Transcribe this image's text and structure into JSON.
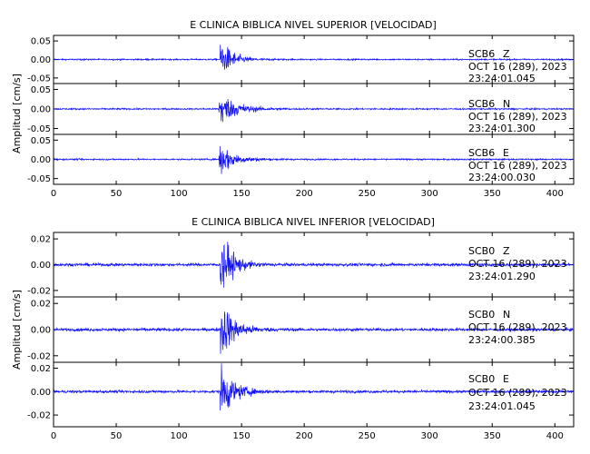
{
  "chart_data": [
    {
      "type": "line",
      "title": "E CLINICA BIBLICA NIVEL SUPERIOR [VELOCIDAD]",
      "ylabel": "Amplitud [cm/s]",
      "xlim": [
        0,
        415
      ],
      "xticks": [
        0,
        50,
        100,
        150,
        200,
        250,
        300,
        350,
        400
      ],
      "color": "#1010ff",
      "traces": [
        {
          "station": "SCB6",
          "component": "Z",
          "date": "OCT 16 (289), 2023",
          "time": "23:24:01.045",
          "ylim": [
            -0.065,
            0.065
          ],
          "yticks": [
            0.05,
            0.0,
            -0.05
          ],
          "ytick_labels": [
            "0.05",
            "0.00",
            "-0.05"
          ],
          "arrival": 133,
          "noise": 0.0015,
          "peak": 0.052,
          "decay": 9
        },
        {
          "station": "SCB6",
          "component": "N",
          "date": "OCT 16 (289), 2023",
          "time": "23:24:01.300",
          "ylim": [
            -0.065,
            0.065
          ],
          "yticks": [
            0.05,
            0.0,
            -0.05
          ],
          "ytick_labels": [
            "0.05",
            "0.00",
            "-0.05"
          ],
          "arrival": 132,
          "noise": 0.0015,
          "peak": 0.045,
          "decay": 13
        },
        {
          "station": "SCB6",
          "component": "E",
          "date": "OCT 16 (289), 2023",
          "time": "23:24:00.030",
          "ylim": [
            -0.065,
            0.065
          ],
          "yticks": [
            0.05,
            0.0,
            -0.05
          ],
          "ytick_labels": [
            "0.05",
            "0.00",
            "-0.05"
          ],
          "arrival": 132,
          "noise": 0.0015,
          "peak": 0.045,
          "decay": 11
        }
      ]
    },
    {
      "type": "line",
      "title": "E CLINICA BIBLICA NIVEL INFERIOR [VELOCIDAD]",
      "ylabel": "Amplitud [cm/s]",
      "xlim": [
        0,
        415
      ],
      "xticks": [
        0,
        50,
        100,
        150,
        200,
        250,
        300,
        350,
        400
      ],
      "color": "#1010ff",
      "traces": [
        {
          "station": "SCB0",
          "component": "Z",
          "date": "OCT 16 (289), 2023",
          "time": "23:24:01.290",
          "ylim": [
            -0.025,
            0.025
          ],
          "yticks": [
            0.02,
            0.0,
            -0.02
          ],
          "ytick_labels": [
            "0.02",
            "0.00",
            "-0.02"
          ],
          "arrival": 133,
          "noise": 0.0009,
          "peak": 0.024,
          "decay": 9
        },
        {
          "station": "SCB0",
          "component": "N",
          "date": "OCT 16 (289), 2023",
          "time": "23:24:00.385",
          "ylim": [
            -0.025,
            0.025
          ],
          "yticks": [
            0.02,
            0.0,
            -0.02
          ],
          "ytick_labels": [
            "0.02",
            "0.00",
            "-0.02"
          ],
          "arrival": 133,
          "noise": 0.0009,
          "peak": 0.024,
          "decay": 10
        },
        {
          "station": "SCB0",
          "component": "E",
          "date": "OCT 16 (289), 2023",
          "time": "23:24:01.045",
          "ylim": [
            -0.03,
            0.025
          ],
          "yticks": [
            0.02,
            0.0,
            -0.02
          ],
          "ytick_labels": [
            "0.02",
            "0.00",
            "-0.02"
          ],
          "arrival": 133,
          "noise": 0.0009,
          "peak": 0.022,
          "decay": 10
        }
      ]
    }
  ]
}
